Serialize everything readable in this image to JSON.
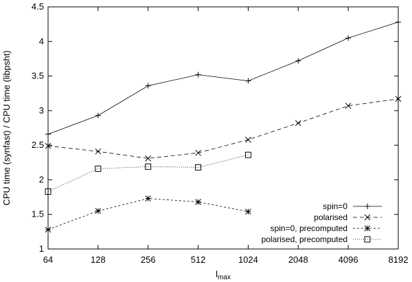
{
  "chart_data": {
    "type": "line",
    "x": [
      64,
      128,
      256,
      512,
      1024,
      2048,
      4096,
      8192
    ],
    "x_tick_labels": [
      "64",
      "128",
      "256",
      "512",
      "1024",
      "2048",
      "4096",
      "8192"
    ],
    "xscale": "log2",
    "xlabel_main": "l",
    "xlabel_sub": "max",
    "ylabel": "CPU time (synfast) / CPU time (libpsht)",
    "ylim": [
      1,
      4.5
    ],
    "y_ticks": [
      1,
      1.5,
      2,
      2.5,
      3,
      3.5,
      4,
      4.5
    ],
    "y_tick_labels": [
      "1",
      "1.5",
      "2",
      "2.5",
      "3",
      "3.5",
      "4",
      "4.5"
    ],
    "grid": false,
    "legend_position": "bottom-right",
    "series": [
      {
        "name": "spin=0",
        "marker": "plus",
        "dash": "solid",
        "x": [
          64,
          128,
          256,
          512,
          1024,
          2048,
          4096,
          8192
        ],
        "values": [
          2.66,
          2.93,
          3.36,
          3.52,
          3.43,
          3.72,
          4.05,
          4.28
        ]
      },
      {
        "name": "polarised",
        "marker": "cross",
        "dash": "dashed",
        "x": [
          64,
          128,
          256,
          512,
          1024,
          2048,
          4096,
          8192
        ],
        "values": [
          2.49,
          2.41,
          2.31,
          2.39,
          2.58,
          2.82,
          3.07,
          3.17
        ]
      },
      {
        "name": "spin=0, precomputed",
        "marker": "star",
        "dash": "short-dashed",
        "x": [
          64,
          128,
          256,
          512,
          1024
        ],
        "values": [
          1.28,
          1.55,
          1.73,
          1.68,
          1.54
        ]
      },
      {
        "name": "polarised, precomputed",
        "marker": "square",
        "dash": "dotted",
        "x": [
          64,
          128,
          256,
          512,
          1024
        ],
        "values": [
          1.83,
          2.16,
          2.19,
          2.18,
          2.36
        ]
      }
    ]
  }
}
